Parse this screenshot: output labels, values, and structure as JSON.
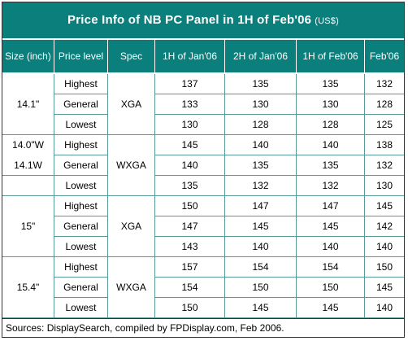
{
  "chart_data": {
    "type": "table",
    "title": "Price Info of NB PC Panel in 1H of Feb'06",
    "title_unit": "(US$)",
    "columns": [
      "Size (inch)",
      "Price level",
      "Spec",
      "1H of Jan'06",
      "2H of Jan'06",
      "1H of Feb'06",
      "Feb'06"
    ],
    "groups": [
      {
        "size": "14.1\"",
        "spec": "XGA",
        "rows": [
          {
            "level": "Highest",
            "values": [
              137,
              135,
              135,
              132
            ]
          },
          {
            "level": "General",
            "values": [
              133,
              130,
              130,
              128
            ]
          },
          {
            "level": "Lowest",
            "values": [
              130,
              128,
              128,
              125
            ]
          }
        ]
      },
      {
        "size_lines": [
          "14.0\"W",
          "14.1W"
        ],
        "spec": "WXGA",
        "rows": [
          {
            "level": "Highest",
            "values": [
              145,
              140,
              140,
              138
            ]
          },
          {
            "level": "General",
            "values": [
              140,
              135,
              135,
              132
            ]
          },
          {
            "level": "Lowest",
            "values": [
              135,
              132,
              132,
              130
            ]
          }
        ]
      },
      {
        "size": "15\"",
        "spec": "XGA",
        "rows": [
          {
            "level": "Highest",
            "values": [
              150,
              147,
              147,
              145
            ]
          },
          {
            "level": "General",
            "values": [
              147,
              145,
              145,
              142
            ]
          },
          {
            "level": "Lowest",
            "values": [
              143,
              140,
              140,
              140
            ]
          }
        ]
      },
      {
        "size": "15.4\"",
        "spec": "WXGA",
        "rows": [
          {
            "level": "Highest",
            "values": [
              157,
              154,
              154,
              150
            ]
          },
          {
            "level": "General",
            "values": [
              154,
              150,
              150,
              145
            ]
          },
          {
            "level": "Lowest",
            "values": [
              150,
              145,
              145,
              140
            ]
          }
        ]
      }
    ],
    "source": "Sources: DisplaySearch, compiled by FPDisplay.com, Feb 2006."
  },
  "colors": {
    "header_bg": "#0b7f7c",
    "header_text": "#ffffff",
    "grid_line": "#5a9a98"
  }
}
